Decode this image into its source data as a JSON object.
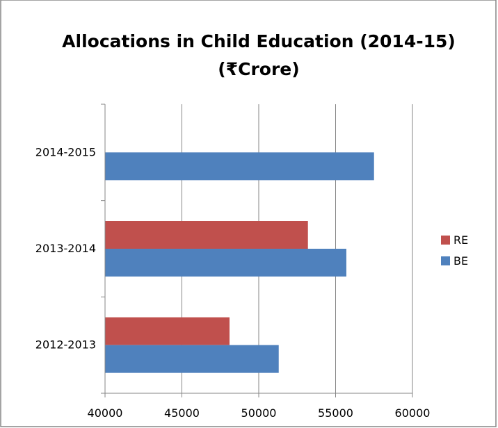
{
  "chart_data": {
    "type": "bar",
    "orientation": "horizontal",
    "title": "Allocations in Child Education (2014-15)",
    "subtitle": "(₹Crore)",
    "categories": [
      "2014-2015",
      "2013-2014",
      "2012-2013"
    ],
    "series": [
      {
        "name": "RE",
        "color": "#C0504D",
        "values": [
          null,
          53200,
          48100
        ]
      },
      {
        "name": "BE",
        "color": "#4F81BD",
        "values": [
          57500,
          55700,
          51300
        ]
      }
    ],
    "xlim": [
      40000,
      60000
    ],
    "xticks": [
      40000,
      45000,
      50000,
      55000,
      60000
    ],
    "grid": true,
    "legend_position": "right",
    "legend_order": [
      "RE",
      "BE"
    ]
  }
}
